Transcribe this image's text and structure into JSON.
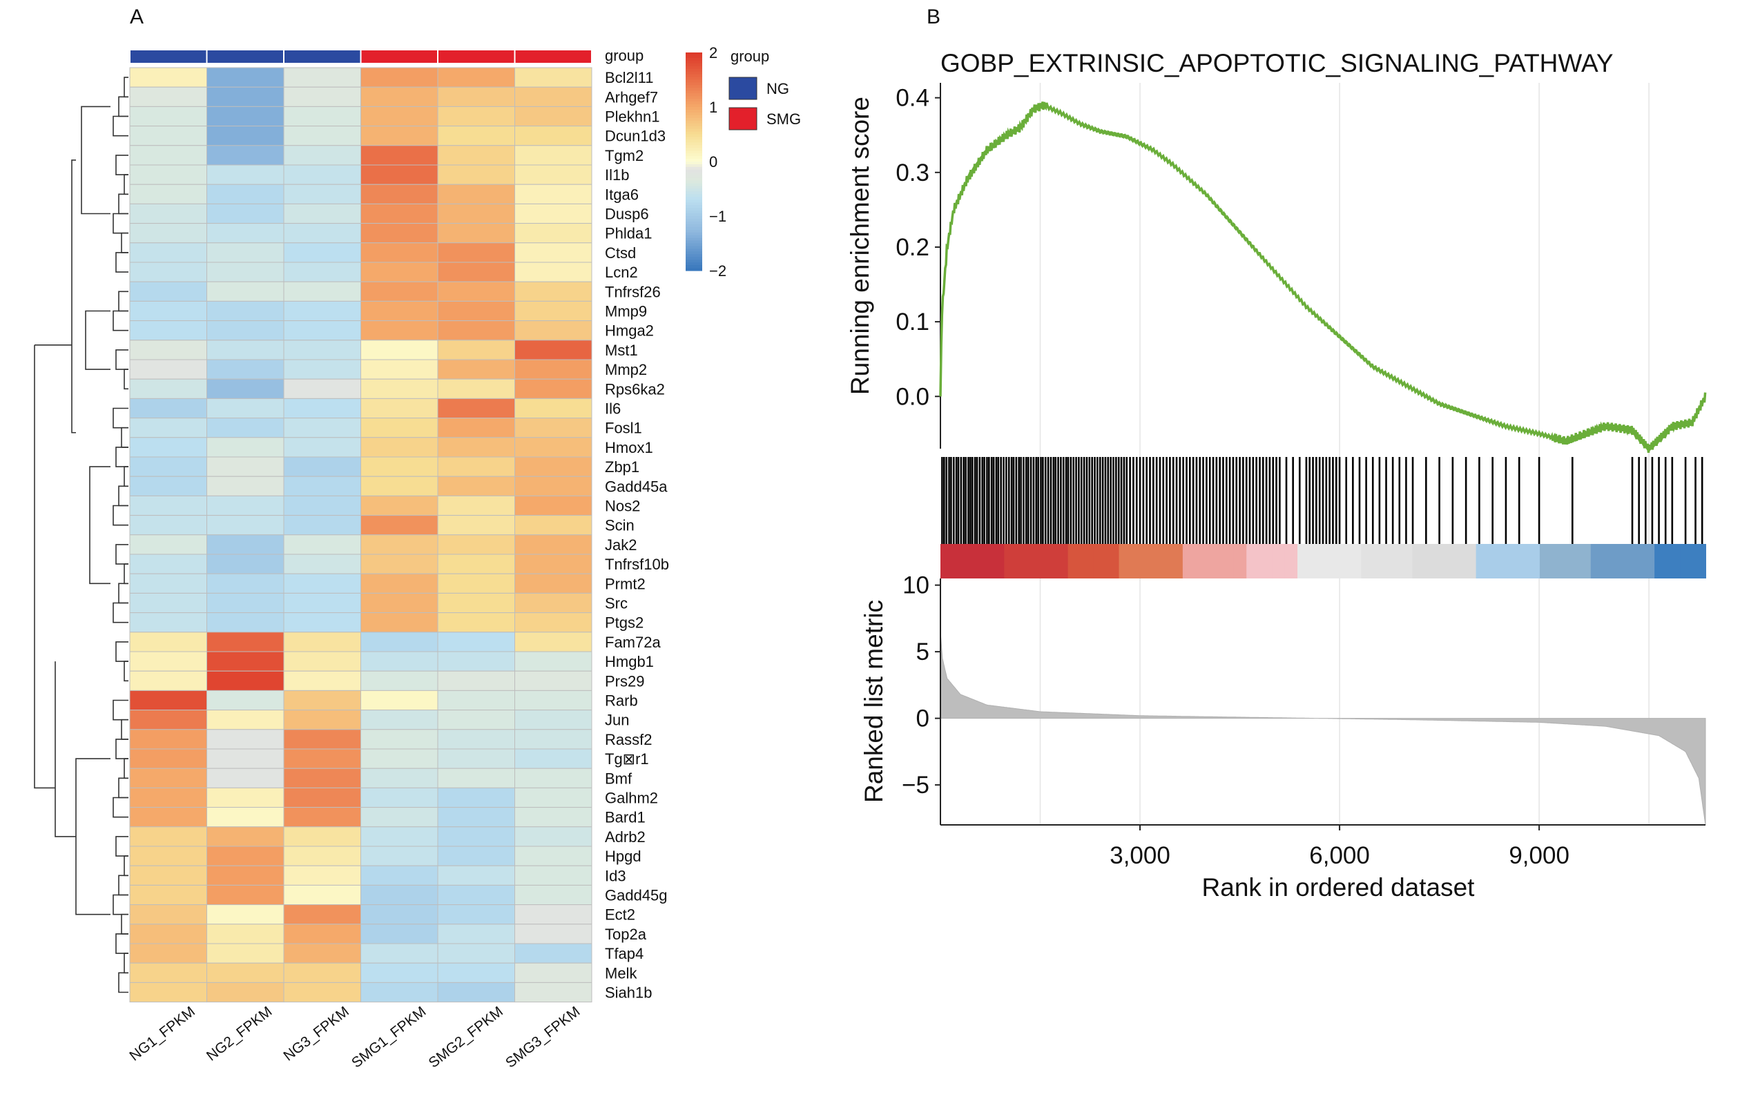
{
  "panels": {
    "a": "A",
    "b": "B"
  },
  "chart_data": [
    {
      "type": "heatmap",
      "columns": [
        "NG1_FPKM",
        "NG2_FPKM",
        "NG3_FPKM",
        "SMG1_FPKM",
        "SMG2_FPKM",
        "SMG3_FPKM"
      ],
      "column_groups": [
        "NG",
        "NG",
        "NG",
        "SMG",
        "SMG",
        "SMG"
      ],
      "group_legend": {
        "title": "group",
        "annotation_label": "group",
        "entries": [
          {
            "label": "NG",
            "color": "#2b4aa0"
          },
          {
            "label": "SMG",
            "color": "#e3202b"
          }
        ]
      },
      "color_scale": {
        "ticks": [
          2,
          1,
          0,
          -1,
          -2
        ],
        "tick_labels": [
          "2",
          "1",
          "0",
          "−1",
          "−2"
        ],
        "range": [
          -2,
          2
        ],
        "low": "#3a78bd",
        "mid": "#fdfdd2",
        "high": "#dd3a2a"
      },
      "rows": [
        "Bcl2l11",
        "Arhgef7",
        "Plekhn1",
        "Dcun1d3",
        "Tgm2",
        "Il1b",
        "Itga6",
        "Dusp6",
        "Phlda1",
        "Ctsd",
        "Lcn2",
        "Tnfrsf26",
        "Mmp9",
        "Hmga2",
        "Mst1",
        "Mmp2",
        "Rps6ka2",
        "Il6",
        "Fosl1",
        "Hmox1",
        "Zbp1",
        "Gadd45a",
        "Nos2",
        "Scin",
        "Jak2",
        "Tnfrsf10b",
        "Prmt2",
        "Src",
        "Ptgs2",
        "Fam72a",
        "Hmgb1",
        "Prs29",
        "Rarb",
        "Jun",
        "Rassf2",
        "Tg⊠r1",
        "Bmf",
        "Galhm2",
        "Bard1",
        "Adrb2",
        "Hpgd",
        "Id3",
        "Gadd45g",
        "Ect2",
        "Top2a",
        "Tfap4",
        "Melk",
        "Siah1b"
      ],
      "values": [
        [
          0.2,
          -1.4,
          -0.3,
          1.1,
          1.0,
          0.4
        ],
        [
          -0.3,
          -1.4,
          -0.3,
          0.9,
          0.7,
          0.7
        ],
        [
          -0.4,
          -1.4,
          -0.4,
          0.9,
          0.6,
          0.7
        ],
        [
          -0.4,
          -1.4,
          -0.4,
          0.9,
          0.5,
          0.5
        ],
        [
          -0.4,
          -1.3,
          -0.5,
          1.5,
          0.6,
          0.3
        ],
        [
          -0.4,
          -0.6,
          -0.6,
          1.5,
          0.6,
          0.3
        ],
        [
          -0.4,
          -0.8,
          -0.6,
          1.3,
          0.9,
          0.2
        ],
        [
          -0.5,
          -0.8,
          -0.5,
          1.2,
          0.9,
          0.2
        ],
        [
          -0.5,
          -0.6,
          -0.6,
          1.2,
          0.9,
          0.3
        ],
        [
          -0.6,
          -0.5,
          -0.7,
          1.1,
          1.2,
          0.2
        ],
        [
          -0.6,
          -0.5,
          -0.6,
          1.0,
          1.2,
          0.2
        ],
        [
          -0.8,
          -0.4,
          -0.4,
          1.1,
          1.0,
          0.6
        ],
        [
          -0.7,
          -0.8,
          -0.7,
          1.0,
          1.1,
          0.6
        ],
        [
          -0.7,
          -0.8,
          -0.7,
          1.0,
          1.1,
          0.7
        ],
        [
          -0.3,
          -0.6,
          -0.6,
          0.1,
          0.6,
          1.6
        ],
        [
          -0.2,
          -0.9,
          -0.6,
          0.2,
          0.9,
          1.1
        ],
        [
          -0.5,
          -1.2,
          -0.2,
          0.3,
          0.4,
          1.1
        ],
        [
          -0.9,
          -0.6,
          -0.7,
          0.4,
          1.4,
          0.5
        ],
        [
          -0.6,
          -0.8,
          -0.6,
          0.5,
          1.0,
          0.7
        ],
        [
          -0.7,
          -0.4,
          -0.6,
          0.6,
          0.8,
          0.8
        ],
        [
          -0.8,
          -0.3,
          -0.9,
          0.5,
          0.6,
          0.9
        ],
        [
          -0.8,
          -0.3,
          -0.8,
          0.5,
          0.8,
          0.9
        ],
        [
          -0.6,
          -0.6,
          -0.8,
          0.8,
          0.4,
          1.0
        ],
        [
          -0.6,
          -0.6,
          -0.8,
          1.2,
          0.4,
          0.6
        ],
        [
          -0.4,
          -1.0,
          -0.4,
          0.7,
          0.6,
          0.9
        ],
        [
          -0.6,
          -1.0,
          -0.5,
          0.7,
          0.5,
          0.9
        ],
        [
          -0.6,
          -0.8,
          -0.7,
          0.9,
          0.5,
          0.9
        ],
        [
          -0.6,
          -0.8,
          -0.7,
          0.9,
          0.5,
          0.7
        ],
        [
          -0.6,
          -0.8,
          -0.7,
          0.9,
          0.5,
          0.6
        ],
        [
          0.3,
          1.6,
          0.4,
          -0.8,
          -0.7,
          0.4
        ],
        [
          0.2,
          1.8,
          0.3,
          -0.6,
          -0.6,
          -0.4
        ],
        [
          0.2,
          1.9,
          0.2,
          -0.4,
          -0.3,
          -0.3
        ],
        [
          1.8,
          -0.4,
          0.7,
          0.1,
          -0.4,
          -0.4
        ],
        [
          1.4,
          0.2,
          0.8,
          -0.5,
          -0.4,
          -0.5
        ],
        [
          1.1,
          -0.2,
          1.3,
          -0.4,
          -0.5,
          -0.5
        ],
        [
          1.1,
          -0.2,
          1.2,
          -0.4,
          -0.5,
          -0.6
        ],
        [
          1.0,
          -0.2,
          1.3,
          -0.5,
          -0.4,
          -0.4
        ],
        [
          1.0,
          0.2,
          1.3,
          -0.6,
          -0.8,
          -0.4
        ],
        [
          1.0,
          0.1,
          1.2,
          -0.5,
          -0.8,
          -0.4
        ],
        [
          0.6,
          0.9,
          0.4,
          -0.6,
          -0.8,
          -0.5
        ],
        [
          0.6,
          1.1,
          0.3,
          -0.6,
          -0.8,
          -0.4
        ],
        [
          0.6,
          1.1,
          0.2,
          -0.8,
          -0.6,
          -0.4
        ],
        [
          0.6,
          1.1,
          0.1,
          -0.9,
          -0.8,
          -0.4
        ],
        [
          0.7,
          0.1,
          1.2,
          -0.9,
          -0.8,
          -0.2
        ],
        [
          0.8,
          0.3,
          1.0,
          -0.9,
          -0.6,
          -0.2
        ],
        [
          0.8,
          0.3,
          0.9,
          -0.6,
          -0.6,
          -0.8
        ],
        [
          0.6,
          0.6,
          0.6,
          -0.7,
          -0.7,
          -0.3
        ],
        [
          0.6,
          0.7,
          0.6,
          -0.8,
          -0.9,
          -0.3
        ]
      ]
    },
    {
      "type": "line",
      "title": "GOBP_EXTRINSIC_APOPTOTIC_SIGNALING_PATHWAY",
      "ylabel": "Running enrichment score",
      "ylim": [
        -0.07,
        0.42
      ],
      "y_ticks": [
        "0.4",
        "0.3",
        "0.2",
        "0.1",
        "0.0"
      ],
      "line_color": "#6aae3a",
      "points": [
        [
          0,
          0.0
        ],
        [
          20,
          0.11
        ],
        [
          100,
          0.2
        ],
        [
          200,
          0.25
        ],
        [
          400,
          0.29
        ],
        [
          700,
          0.33
        ],
        [
          1000,
          0.35
        ],
        [
          1200,
          0.36
        ],
        [
          1400,
          0.385
        ],
        [
          1550,
          0.39
        ],
        [
          1800,
          0.38
        ],
        [
          2100,
          0.365
        ],
        [
          2400,
          0.355
        ],
        [
          2800,
          0.348
        ],
        [
          3200,
          0.33
        ],
        [
          3500,
          0.31
        ],
        [
          4000,
          0.27
        ],
        [
          4500,
          0.22
        ],
        [
          5000,
          0.17
        ],
        [
          5500,
          0.12
        ],
        [
          6000,
          0.08
        ],
        [
          6500,
          0.04
        ],
        [
          7000,
          0.015
        ],
        [
          7500,
          -0.01
        ],
        [
          8000,
          -0.025
        ],
        [
          8500,
          -0.04
        ],
        [
          9000,
          -0.05
        ],
        [
          9400,
          -0.06
        ],
        [
          9700,
          -0.05
        ],
        [
          10000,
          -0.04
        ],
        [
          10400,
          -0.045
        ],
        [
          10650,
          -0.07
        ],
        [
          11000,
          -0.04
        ],
        [
          11300,
          -0.035
        ],
        [
          11500,
          0.0
        ]
      ]
    },
    {
      "type": "bar",
      "ylabel": "Ranked list metric",
      "xlabel": "Rank in ordered dataset",
      "xlim": [
        0,
        11500
      ],
      "ylim": [
        -8,
        10.5
      ],
      "y_ticks": [
        "10",
        "5",
        "0",
        "−5"
      ],
      "x_ticks": [
        "3,000",
        "6,000",
        "9,000"
      ],
      "gene_hit_ranks": [
        25,
        55,
        90,
        130,
        160,
        200,
        240,
        270,
        310,
        350,
        380,
        420,
        450,
        480,
        520,
        550,
        590,
        630,
        660,
        700,
        730,
        770,
        800,
        840,
        870,
        910,
        950,
        990,
        1030,
        1070,
        1100,
        1140,
        1180,
        1210,
        1250,
        1290,
        1320,
        1360,
        1400,
        1440,
        1470,
        1510,
        1540,
        1580,
        1620,
        1660,
        1700,
        1730,
        1770,
        1810,
        1850,
        1890,
        1920,
        1960,
        2000,
        2040,
        2080,
        2120,
        2160,
        2200,
        2240,
        2280,
        2320,
        2360,
        2400,
        2440,
        2480,
        2520,
        2560,
        2600,
        2640,
        2680,
        2720,
        2760,
        2800,
        2850,
        2900,
        2950,
        3000,
        3050,
        3100,
        3150,
        3200,
        3250,
        3300,
        3350,
        3400,
        3450,
        3500,
        3550,
        3600,
        3650,
        3700,
        3750,
        3800,
        3850,
        3900,
        3950,
        4000,
        4050,
        4100,
        4150,
        4200,
        4250,
        4300,
        4350,
        4400,
        4450,
        4500,
        4550,
        4600,
        4650,
        4700,
        4750,
        4800,
        4850,
        4900,
        4950,
        5000,
        5050,
        5100,
        5200,
        5300,
        5400,
        5500,
        5550,
        5600,
        5650,
        5700,
        5750,
        5800,
        5850,
        5900,
        5950,
        6000,
        6100,
        6200,
        6300,
        6400,
        6500,
        6600,
        6700,
        6800,
        6900,
        7000,
        7100,
        7300,
        7500,
        7700,
        7900,
        8100,
        8300,
        8500,
        8700,
        9000,
        9500,
        10400,
        10500,
        10600,
        10700,
        10800,
        10900,
        11000,
        11200,
        11350,
        11450
      ],
      "metric_points": [
        [
          0,
          6.5
        ],
        [
          30,
          4.5
        ],
        [
          100,
          3.0
        ],
        [
          300,
          1.8
        ],
        [
          700,
          1.0
        ],
        [
          1500,
          0.5
        ],
        [
          3000,
          0.2
        ],
        [
          5000,
          0.05
        ],
        [
          7000,
          -0.1
        ],
        [
          9000,
          -0.3
        ],
        [
          10000,
          -0.6
        ],
        [
          10800,
          -1.3
        ],
        [
          11200,
          -2.5
        ],
        [
          11400,
          -4.5
        ],
        [
          11500,
          -8.0
        ]
      ]
    }
  ]
}
